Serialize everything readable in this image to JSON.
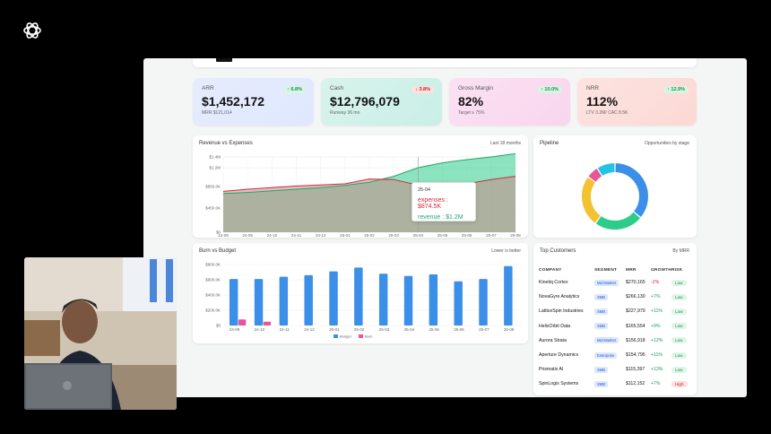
{
  "brand": {
    "icon": "openai-logo-icon"
  },
  "kpis": [
    {
      "title": "ARR",
      "value": "$1,452,172",
      "sub": "MRR $121,014",
      "badge": "↑ 6.8%",
      "trend": "up"
    },
    {
      "title": "Cash",
      "value": "$12,796,079",
      "sub": "Runway 36 mo",
      "badge": "↓ 3.8%",
      "trend": "down"
    },
    {
      "title": "Gross Margin",
      "value": "82%",
      "sub": "Target ≥ 75%",
      "badge": "↑ 10.0%",
      "trend": "up"
    },
    {
      "title": "NRR",
      "value": "112%",
      "sub": "LTV 3.2M/ CAC 8.5K",
      "badge": "↑ 12.9%",
      "trend": "up"
    }
  ],
  "revenue_chart": {
    "title": "Revenue vs Expenses",
    "range_label": "Last 18 months",
    "tooltip": {
      "date": "25-04",
      "expenses": "expenses : $874.5K",
      "revenue": "revenue : $1.2M"
    }
  },
  "pipeline_chart": {
    "title": "Pipeline",
    "meta": "Opportunities by stage"
  },
  "burn_chart": {
    "title": "Burn vs Budget",
    "meta": "Lower is better"
  },
  "customers": {
    "title": "Top Customers",
    "meta": "By MRR",
    "columns": [
      "COMPANY",
      "SEGMENT",
      "MRR",
      "GROWTH",
      "RISK"
    ],
    "rows": [
      {
        "company": "Kinetiq Cortex",
        "segment": "Mid-Market",
        "mrr": "$270,165",
        "growth": "-2%",
        "risk": "Low"
      },
      {
        "company": "NovaGyre Analytics",
        "segment": "SMB",
        "mrr": "$266,130",
        "growth": "+7%",
        "risk": "Low"
      },
      {
        "company": "LatticeSpin Industries",
        "segment": "SMB",
        "mrr": "$227,979",
        "growth": "+11%",
        "risk": "Low"
      },
      {
        "company": "HelixOrbit Data",
        "segment": "SMB",
        "mrr": "$165,554",
        "growth": "+9%",
        "risk": "Low"
      },
      {
        "company": "Aurora Strata",
        "segment": "Mid-Market",
        "mrr": "$156,918",
        "growth": "+12%",
        "risk": "Low"
      },
      {
        "company": "Aperture Dynamics",
        "segment": "Enterprise",
        "mrr": "$154,795",
        "growth": "+11%",
        "risk": "Low"
      },
      {
        "company": "Prismatix AI",
        "segment": "SMB",
        "mrr": "$115,397",
        "growth": "+13%",
        "risk": "Low"
      },
      {
        "company": "SpinLogix Systems",
        "segment": "SMB",
        "mrr": "$112,152",
        "growth": "+7%",
        "risk": "High"
      }
    ]
  },
  "colors": {
    "revenue": "#2ecc8a",
    "expenses": "#d7263d",
    "budget": "#3b8fe8",
    "burn": "#e8559a"
  },
  "chart_data": [
    {
      "type": "area",
      "title": "Revenue vs Expenses",
      "categories": [
        "24-08",
        "24-09",
        "24-10",
        "24-11",
        "24-12",
        "25-01",
        "25-02",
        "25-03",
        "25-04",
        "25-05",
        "25-06",
        "25-07",
        "25-08"
      ],
      "ylim": [
        0,
        1400000
      ],
      "yticks": [
        "$0",
        "$450.0K",
        "$850.0K",
        "$1.2M",
        "$1.4M"
      ],
      "series": [
        {
          "name": "revenue",
          "values": [
            720000,
            740000,
            770000,
            800000,
            830000,
            870000,
            930000,
            1040000,
            1200000,
            1290000,
            1350000,
            1400000,
            1460000
          ]
        },
        {
          "name": "expenses",
          "values": [
            760000,
            800000,
            830000,
            860000,
            880000,
            900000,
            990000,
            980000,
            874500,
            870000,
            900000,
            980000,
            1040000
          ]
        }
      ]
    },
    {
      "type": "pie",
      "title": "Pipeline",
      "slices": [
        {
          "label": "stage-1",
          "value": 36,
          "color": "#3b8fe8"
        },
        {
          "label": "stage-2",
          "value": 24,
          "color": "#2ecc8a"
        },
        {
          "label": "stage-3",
          "value": 25,
          "color": "#f2c230"
        },
        {
          "label": "stage-4",
          "value": 6,
          "color": "#e8559a"
        },
        {
          "label": "stage-5",
          "value": 9,
          "color": "#22c3e6"
        }
      ]
    },
    {
      "type": "bar",
      "title": "Burn vs Budget",
      "categories": [
        "24-09",
        "24-10",
        "24-11",
        "24-12",
        "25-01",
        "25-02",
        "25-03",
        "25-04",
        "25-05",
        "25-06",
        "25-07",
        "25-08"
      ],
      "ylim": [
        0,
        800000
      ],
      "yticks": [
        "$0",
        "$200.0K",
        "$400.0K",
        "$600.0K",
        "$800.0K"
      ],
      "series": [
        {
          "name": "Budget",
          "values": [
            610000,
            610000,
            640000,
            660000,
            710000,
            760000,
            680000,
            650000,
            670000,
            580000,
            610000,
            780000
          ]
        },
        {
          "name": "Burn",
          "values": [
            80000,
            50000,
            0,
            0,
            0,
            0,
            0,
            0,
            0,
            0,
            0,
            0
          ]
        }
      ]
    }
  ]
}
